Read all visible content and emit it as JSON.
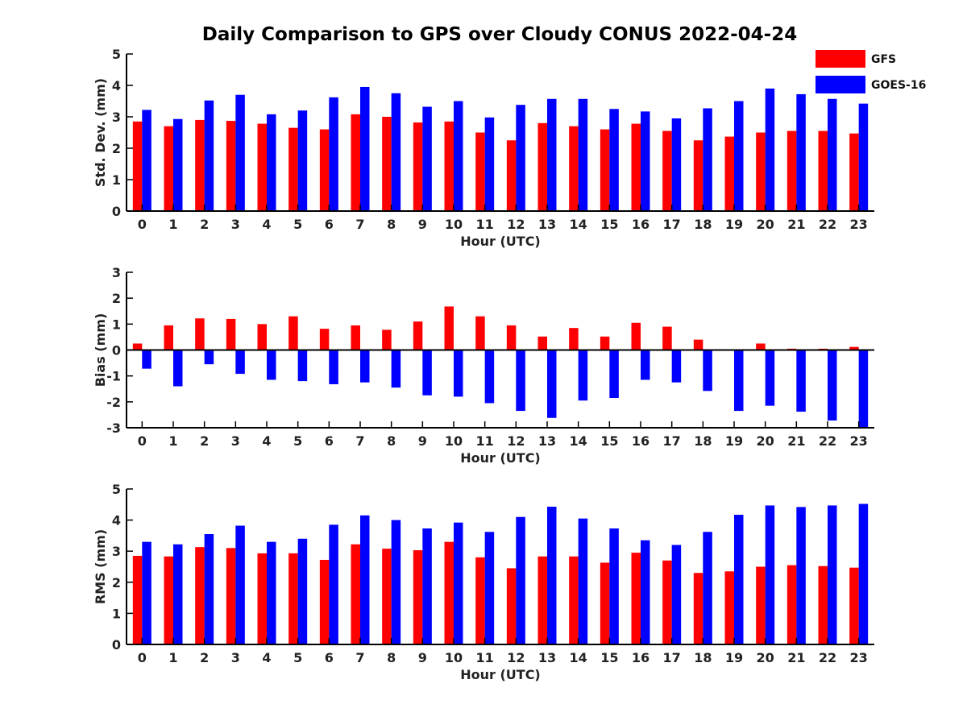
{
  "title": "Daily Comparison to GPS over Cloudy CONUS 2022-04-24",
  "colors": {
    "GFS": "#ff0000",
    "GOES-16": "#0000ff"
  },
  "legend": {
    "placement": "top-right",
    "entries": [
      "GFS",
      "GOES-16"
    ]
  },
  "chart_data": [
    {
      "type": "bar",
      "xlabel": "Hour (UTC)",
      "ylabel": "Std. Dev. (mm)",
      "ylim": [
        0,
        5
      ],
      "yticks": [
        0,
        1,
        2,
        3,
        4,
        5
      ],
      "categories": [
        "0",
        "1",
        "2",
        "3",
        "4",
        "5",
        "6",
        "7",
        "8",
        "9",
        "10",
        "11",
        "12",
        "13",
        "14",
        "15",
        "16",
        "17",
        "18",
        "19",
        "20",
        "21",
        "22",
        "23"
      ],
      "series": [
        {
          "name": "GFS",
          "values": [
            2.85,
            2.7,
            2.9,
            2.87,
            2.78,
            2.65,
            2.6,
            3.08,
            3.0,
            2.82,
            2.85,
            2.5,
            2.25,
            2.8,
            2.7,
            2.6,
            2.78,
            2.55,
            2.25,
            2.37,
            2.5,
            2.55,
            2.55,
            2.47
          ]
        },
        {
          "name": "GOES-16",
          "values": [
            3.22,
            2.93,
            3.52,
            3.7,
            3.08,
            3.2,
            3.62,
            3.95,
            3.75,
            3.32,
            3.5,
            2.98,
            3.38,
            3.57,
            3.57,
            3.25,
            3.17,
            2.95,
            3.27,
            3.5,
            3.9,
            3.72,
            3.57,
            3.42
          ]
        }
      ]
    },
    {
      "type": "bar",
      "xlabel": "Hour (UTC)",
      "ylabel": "Bias (mm)",
      "ylim": [
        -3,
        3
      ],
      "yticks": [
        -3,
        -2,
        -1,
        0,
        1,
        2,
        3
      ],
      "categories": [
        "0",
        "1",
        "2",
        "3",
        "4",
        "5",
        "6",
        "7",
        "8",
        "9",
        "10",
        "11",
        "12",
        "13",
        "14",
        "15",
        "16",
        "17",
        "18",
        "19",
        "20",
        "21",
        "22",
        "23"
      ],
      "series": [
        {
          "name": "GFS",
          "values": [
            0.25,
            0.95,
            1.22,
            1.2,
            1.0,
            1.3,
            0.82,
            0.95,
            0.78,
            1.1,
            1.68,
            1.3,
            0.95,
            0.52,
            0.85,
            0.52,
            1.05,
            0.9,
            0.4,
            0.0,
            0.25,
            0.05,
            0.05,
            0.12
          ]
        },
        {
          "name": "GOES-16",
          "values": [
            -0.72,
            -1.4,
            -0.55,
            -0.92,
            -1.15,
            -1.2,
            -1.32,
            -1.25,
            -1.45,
            -1.75,
            -1.8,
            -2.05,
            -2.35,
            -2.62,
            -1.95,
            -1.85,
            -1.15,
            -1.25,
            -1.58,
            -2.35,
            -2.15,
            -2.38,
            -2.72,
            -2.98
          ]
        }
      ]
    },
    {
      "type": "bar",
      "xlabel": "Hour (UTC)",
      "ylabel": "RMS (mm)",
      "ylim": [
        0,
        5
      ],
      "yticks": [
        0,
        1,
        2,
        3,
        4,
        5
      ],
      "categories": [
        "0",
        "1",
        "2",
        "3",
        "4",
        "5",
        "6",
        "7",
        "8",
        "9",
        "10",
        "11",
        "12",
        "13",
        "14",
        "15",
        "16",
        "17",
        "18",
        "19",
        "20",
        "21",
        "22",
        "23"
      ],
      "series": [
        {
          "name": "GFS",
          "values": [
            2.85,
            2.83,
            3.13,
            3.1,
            2.93,
            2.93,
            2.72,
            3.22,
            3.08,
            3.03,
            3.3,
            2.8,
            2.45,
            2.83,
            2.83,
            2.63,
            2.95,
            2.7,
            2.3,
            2.35,
            2.5,
            2.55,
            2.52,
            2.47
          ]
        },
        {
          "name": "GOES-16",
          "values": [
            3.3,
            3.22,
            3.55,
            3.82,
            3.3,
            3.4,
            3.85,
            4.15,
            4.0,
            3.73,
            3.92,
            3.62,
            4.1,
            4.43,
            4.05,
            3.73,
            3.35,
            3.2,
            3.62,
            4.17,
            4.47,
            4.42,
            4.47,
            4.52
          ]
        }
      ]
    }
  ]
}
